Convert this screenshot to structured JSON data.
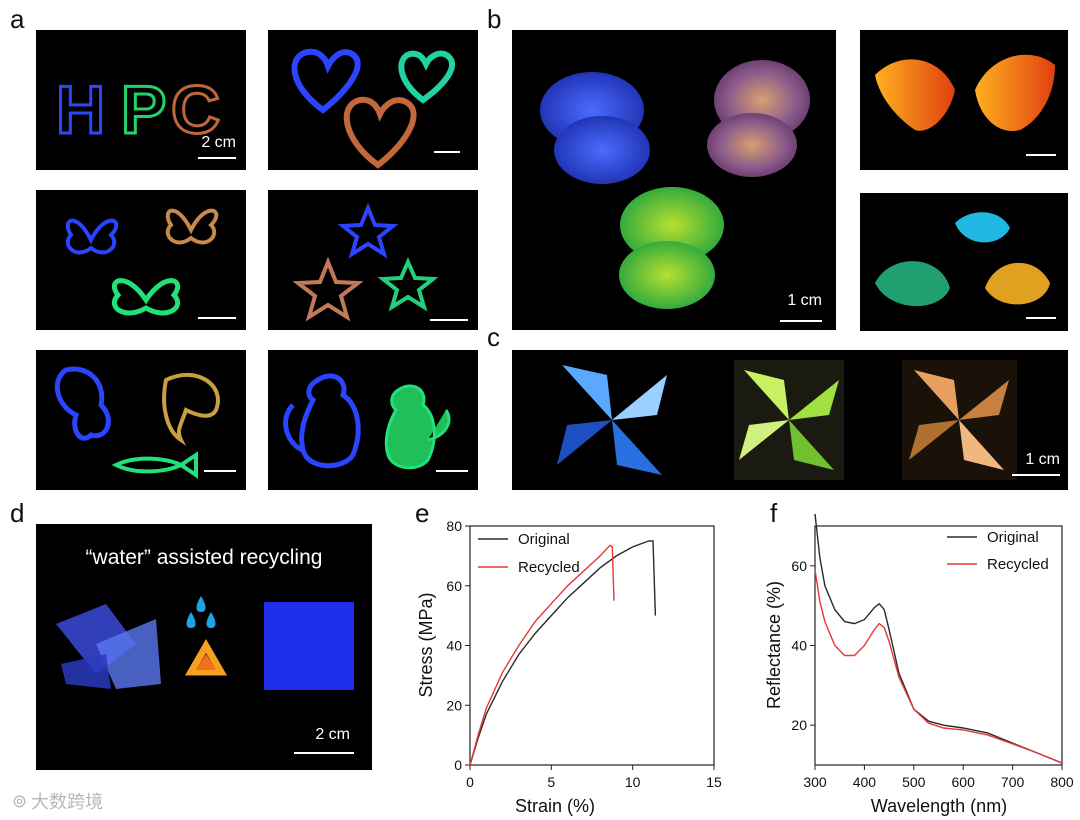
{
  "panels": {
    "a": {
      "label": "a",
      "scale_first": "2 cm"
    },
    "a_text": "HPC",
    "b": {
      "label": "b",
      "scale": "1 cm"
    },
    "c": {
      "label": "c",
      "scale": "1 cm"
    },
    "d": {
      "label": "d",
      "title": "“water” assisted recycling",
      "scale": "2 cm"
    },
    "e": {
      "label": "e"
    },
    "f": {
      "label": "f"
    }
  },
  "colors": {
    "original": "#2a2a2a",
    "recycled": "#e53935",
    "photo_bg": "#000000"
  },
  "watermark": "大数跨境",
  "chart_data": [
    {
      "id": "e",
      "type": "line",
      "xlabel": "Strain (%)",
      "ylabel": "Stress (MPa)",
      "xlim": [
        0,
        15
      ],
      "ylim": [
        0,
        80
      ],
      "xticks": [
        0,
        5,
        10,
        15
      ],
      "yticks": [
        0,
        20,
        40,
        60,
        80
      ],
      "legend": "top-left",
      "series": [
        {
          "name": "Original",
          "color": "#2a2a2a",
          "x": [
            0,
            0.5,
            1,
            2,
            3,
            4,
            5,
            6,
            7,
            8,
            9,
            10,
            11,
            11.25,
            11.4
          ],
          "y": [
            0,
            9,
            17,
            28,
            37,
            44,
            50,
            56,
            61,
            66,
            70,
            73,
            75,
            75,
            50
          ]
        },
        {
          "name": "Recycled",
          "color": "#e53935",
          "x": [
            0,
            0.5,
            1,
            2,
            3,
            4,
            5,
            6,
            7,
            8,
            8.6,
            8.75,
            8.85
          ],
          "y": [
            0,
            10,
            19,
            31,
            40,
            48,
            54,
            60,
            65,
            70,
            73.5,
            73,
            55
          ]
        }
      ]
    },
    {
      "id": "f",
      "type": "line",
      "xlabel": "Wavelength (nm)",
      "ylabel": "Reflectance (%)",
      "xlim": [
        300,
        800
      ],
      "ylim": [
        10,
        70
      ],
      "xticks": [
        300,
        400,
        500,
        600,
        700,
        800
      ],
      "yticks": [
        20,
        40,
        60
      ],
      "legend": "top-right",
      "series": [
        {
          "name": "Original",
          "color": "#2a2a2a",
          "x": [
            300,
            310,
            320,
            340,
            360,
            380,
            400,
            420,
            430,
            440,
            450,
            470,
            500,
            530,
            560,
            600,
            650,
            700,
            750,
            800
          ],
          "y": [
            73,
            62,
            55,
            49,
            46,
            45.5,
            46.5,
            49.5,
            50.5,
            49,
            44,
            33,
            24,
            21,
            20,
            19.3,
            18,
            15.5,
            13,
            10.5
          ]
        },
        {
          "name": "Recycled",
          "color": "#e53935",
          "x": [
            300,
            310,
            320,
            340,
            360,
            380,
            400,
            420,
            430,
            440,
            450,
            470,
            500,
            530,
            560,
            600,
            650,
            700,
            750,
            800
          ],
          "y": [
            59,
            51,
            46,
            40,
            37.5,
            37.5,
            40,
            44,
            45.5,
            44.5,
            41,
            32,
            24,
            20.5,
            19.3,
            18.8,
            17.5,
            15.3,
            13,
            10.5
          ]
        }
      ]
    }
  ]
}
